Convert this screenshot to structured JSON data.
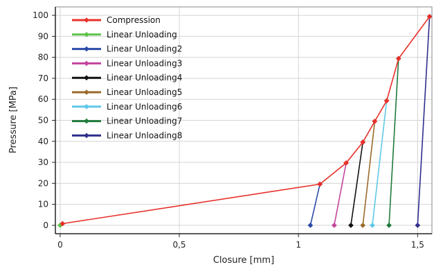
{
  "chart_data": {
    "type": "line",
    "title": "",
    "xlabel": "Closure [mm]",
    "ylabel": "Pressure [MPa]",
    "xlim": [
      -0.02,
      1.56
    ],
    "ylim": [
      -4,
      104
    ],
    "xticks": [
      0,
      0.5,
      1,
      1.5
    ],
    "xtick_labels": [
      "0",
      "0,5",
      "1",
      "1,5"
    ],
    "yticks": [
      0,
      10,
      20,
      30,
      40,
      50,
      60,
      70,
      80,
      90,
      100
    ],
    "ytick_labels": [
      "0",
      "10",
      "20",
      "30",
      "40",
      "50",
      "60",
      "70",
      "80",
      "90",
      "100"
    ],
    "grid": true,
    "legend_position": "top-left",
    "series": [
      {
        "name": "Compression",
        "color": "#e8302a",
        "points": [
          [
            0.01,
            0.8
          ],
          [
            1.09,
            19.6
          ],
          [
            1.2,
            29.7
          ],
          [
            1.27,
            39.6
          ],
          [
            1.32,
            49.5
          ],
          [
            1.37,
            59.3
          ],
          [
            1.42,
            79.4
          ],
          [
            1.55,
            99.4
          ]
        ]
      },
      {
        "name": "Linear Unloading",
        "color": "#5fc24a",
        "points": [
          [
            0.0,
            0.0
          ],
          [
            0.01,
            0.8
          ]
        ]
      },
      {
        "name": "Linear Unloading2",
        "color": "#2a4aa8",
        "points": [
          [
            1.05,
            0.0
          ],
          [
            1.09,
            19.6
          ]
        ]
      },
      {
        "name": "Linear Unloading3",
        "color": "#c4449c",
        "points": [
          [
            1.15,
            0.0
          ],
          [
            1.2,
            29.7
          ]
        ]
      },
      {
        "name": "Linear Unloading4",
        "color": "#111111",
        "points": [
          [
            1.22,
            0.0
          ],
          [
            1.27,
            39.6
          ]
        ]
      },
      {
        "name": "Linear Unloading5",
        "color": "#9a6a2a",
        "points": [
          [
            1.27,
            0.0
          ],
          [
            1.32,
            49.5
          ]
        ]
      },
      {
        "name": "Linear Unloading6",
        "color": "#5ec8e8",
        "points": [
          [
            1.31,
            0.0
          ],
          [
            1.37,
            59.3
          ]
        ]
      },
      {
        "name": "Linear Unloading7",
        "color": "#1f7a3a",
        "points": [
          [
            1.38,
            0.0
          ],
          [
            1.42,
            79.4
          ]
        ]
      },
      {
        "name": "Linear Unloading8",
        "color": "#2e2e8c",
        "points": [
          [
            1.5,
            0.0
          ],
          [
            1.55,
            99.4
          ]
        ]
      }
    ]
  }
}
